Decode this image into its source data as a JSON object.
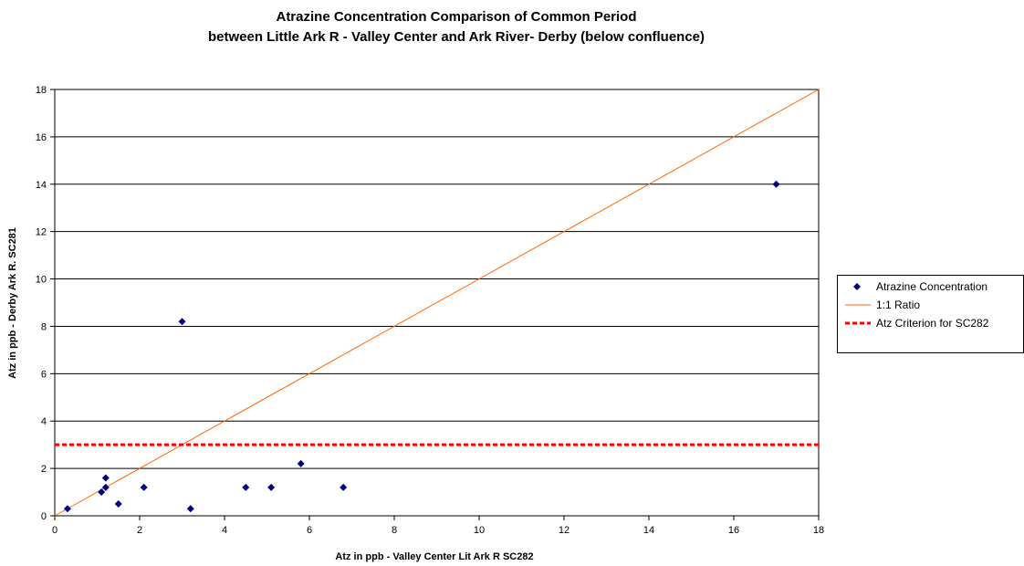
{
  "chart_data": {
    "type": "scatter",
    "title": "Atrazine Concentration Comparison of Common Period",
    "subtitle": "between Little Ark R - Valley Center and Ark River- Derby (below confluence)",
    "xlabel": "Atz in ppb - Valley Center Lit Ark R SC282",
    "ylabel": "Atz in ppb - Derby Ark R. SC281",
    "xlim": [
      0,
      18
    ],
    "ylim": [
      0,
      18
    ],
    "xticks": [
      "0",
      "2",
      "4",
      "6",
      "8",
      "10",
      "12",
      "14",
      "16",
      "18"
    ],
    "yticks": [
      "0",
      "2",
      "4",
      "6",
      "8",
      "10",
      "12",
      "14",
      "16",
      "18"
    ],
    "grid": "horizontal",
    "legend_position": "right",
    "series": [
      {
        "name": "Atrazine Concentration",
        "kind": "scatter",
        "marker": "diamond",
        "color": "#000080",
        "points": [
          {
            "x": 0.3,
            "y": 0.3
          },
          {
            "x": 1.1,
            "y": 1.0
          },
          {
            "x": 1.2,
            "y": 1.2
          },
          {
            "x": 1.2,
            "y": 1.6
          },
          {
            "x": 1.5,
            "y": 0.5
          },
          {
            "x": 2.1,
            "y": 1.2
          },
          {
            "x": 3.0,
            "y": 8.2
          },
          {
            "x": 3.2,
            "y": 0.3
          },
          {
            "x": 4.5,
            "y": 1.2
          },
          {
            "x": 5.1,
            "y": 1.2
          },
          {
            "x": 5.8,
            "y": 2.2
          },
          {
            "x": 6.8,
            "y": 1.2
          },
          {
            "x": 17.0,
            "y": 14.0
          }
        ]
      },
      {
        "name": "1:1 Ratio",
        "kind": "line",
        "color": "#FF6600",
        "points": [
          {
            "x": 0,
            "y": 0
          },
          {
            "x": 18,
            "y": 18
          }
        ]
      },
      {
        "name": "Atz Criterion for SC282",
        "kind": "dashed-line",
        "color": "#FF0000",
        "points": [
          {
            "x": 0,
            "y": 3
          },
          {
            "x": 18,
            "y": 3
          }
        ]
      }
    ]
  }
}
